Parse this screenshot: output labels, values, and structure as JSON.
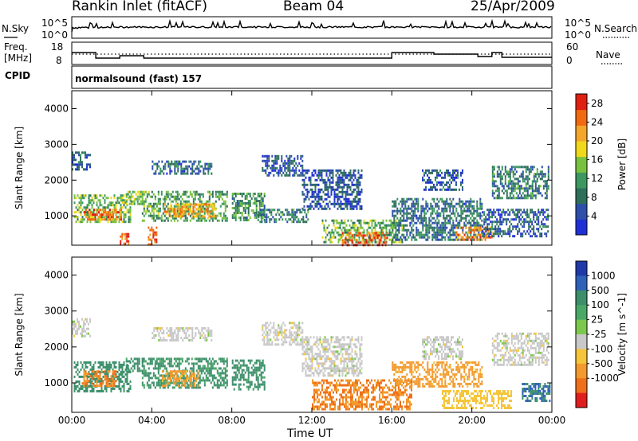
{
  "header": {
    "station": "Rankin Inlet (fitACF)",
    "beam": "Beam 04",
    "date": "25/Apr/2009"
  },
  "top_panel": {
    "nsky_label": "N.Sky",
    "nsky_ticks": [
      "10^5",
      "10^0"
    ],
    "nsearch_label": "N.Search",
    "nsearch_ticks": [
      "10^5",
      "10^0"
    ],
    "freq_label_1": "Freq.",
    "freq_label_2": "[MHz]",
    "freq_ticks": [
      "18",
      "8"
    ],
    "nave_label": "Nave",
    "nave_ticks": [
      "60",
      "0"
    ],
    "cpid_label": "CPID",
    "cpid_value": "normalsound (fast) 157"
  },
  "colors": {
    "power_scale": [
      "#1f2fd6",
      "#2d4faa",
      "#2f6f5a",
      "#3c9860",
      "#79c23f",
      "#f0d81a",
      "#f4a62a",
      "#f26a10",
      "#e02010"
    ],
    "velocity_scale": [
      "#1f3aa8",
      "#2f61b9",
      "#3c8f6a",
      "#4aa867",
      "#7cc84c",
      "#c8c8c8",
      "#f5c53a",
      "#f39a2c",
      "#f06f1a",
      "#e01e1e"
    ]
  },
  "chart_data": [
    {
      "type": "heatmap",
      "title": "",
      "xlabel": "Time UT",
      "ylabel": "Slant Range [km]",
      "x_ticks": [
        "00:00",
        "04:00",
        "08:00",
        "12:00",
        "16:00",
        "20:00",
        "00:00"
      ],
      "x_range_hours": [
        0,
        24
      ],
      "y_ticks": [
        "1000",
        "2000",
        "3000",
        "4000"
      ],
      "ylim": [
        180,
        4500
      ],
      "colorbar_label": "Power [dB]",
      "colorbar_ticks": [
        "4",
        "8",
        "12",
        "16",
        "20",
        "24",
        "28"
      ],
      "colorbar_range": [
        0,
        30
      ],
      "regions": [
        {
          "t": [
            0.1,
            2.9
          ],
          "r": [
            800,
            1600
          ],
          "value": 14
        },
        {
          "t": [
            0.6,
            2.5
          ],
          "r": [
            900,
            1200
          ],
          "value": 24
        },
        {
          "t": [
            0.0,
            0.9
          ],
          "r": [
            2300,
            2800
          ],
          "value": 6
        },
        {
          "t": [
            2.7,
            3.6
          ],
          "r": [
            1350,
            1700
          ],
          "value": 14
        },
        {
          "t": [
            3.5,
            7.8
          ],
          "r": [
            850,
            1700
          ],
          "value": 12
        },
        {
          "t": [
            4.6,
            7.2
          ],
          "r": [
            950,
            1350
          ],
          "value": 22
        },
        {
          "t": [
            3.8,
            4.2
          ],
          "r": [
            200,
            700
          ],
          "value": 26
        },
        {
          "t": [
            2.4,
            2.8
          ],
          "r": [
            200,
            520
          ],
          "value": 26
        },
        {
          "t": [
            4.0,
            7.0
          ],
          "r": [
            2200,
            2550
          ],
          "value": 7
        },
        {
          "t": [
            8.0,
            9.6
          ],
          "r": [
            850,
            1650
          ],
          "value": 11
        },
        {
          "t": [
            9.5,
            11.5
          ],
          "r": [
            2100,
            2700
          ],
          "value": 5
        },
        {
          "t": [
            9.3,
            11.8
          ],
          "r": [
            800,
            1200
          ],
          "value": 9
        },
        {
          "t": [
            11.5,
            14.5
          ],
          "r": [
            1200,
            2300
          ],
          "value": 5
        },
        {
          "t": [
            12.5,
            16.5
          ],
          "r": [
            250,
            900
          ],
          "value": 13
        },
        {
          "t": [
            13.5,
            15.8
          ],
          "r": [
            200,
            550
          ],
          "value": 26
        },
        {
          "t": [
            16.0,
            20.5
          ],
          "r": [
            300,
            1500
          ],
          "value": 8
        },
        {
          "t": [
            19.2,
            21.0
          ],
          "r": [
            350,
            700
          ],
          "value": 24
        },
        {
          "t": [
            17.5,
            19.5
          ],
          "r": [
            1700,
            2300
          ],
          "value": 6
        },
        {
          "t": [
            21.0,
            23.8
          ],
          "r": [
            1500,
            2400
          ],
          "value": 9
        },
        {
          "t": [
            20.5,
            23.8
          ],
          "r": [
            400,
            1200
          ],
          "value": 6
        }
      ]
    },
    {
      "type": "heatmap",
      "title": "",
      "xlabel": "Time UT",
      "ylabel": "Slant Range [km]",
      "x_ticks": [
        "00:00",
        "04:00",
        "08:00",
        "12:00",
        "16:00",
        "20:00",
        "00:00"
      ],
      "x_range_hours": [
        0,
        24
      ],
      "y_ticks": [
        "1000",
        "2000",
        "3000",
        "4000"
      ],
      "ylim": [
        180,
        4500
      ],
      "colorbar_label": "Velocity [m s^-1]",
      "colorbar_ticks": [
        "1000",
        "500",
        "100",
        "25",
        "-25",
        "-100",
        "-500",
        "-1000"
      ],
      "regions": [
        {
          "t": [
            0.1,
            2.9
          ],
          "r": [
            800,
            1600
          ],
          "value": 200
        },
        {
          "t": [
            0.5,
            2.2
          ],
          "r": [
            900,
            1350
          ],
          "value": -300
        },
        {
          "t": [
            0.0,
            0.9
          ],
          "r": [
            2300,
            2800
          ],
          "value": 0
        },
        {
          "t": [
            2.7,
            3.6
          ],
          "r": [
            1350,
            1700
          ],
          "value": 150
        },
        {
          "t": [
            3.5,
            7.8
          ],
          "r": [
            850,
            1700
          ],
          "value": 120
        },
        {
          "t": [
            4.5,
            6.3
          ],
          "r": [
            950,
            1350
          ],
          "value": -150
        },
        {
          "t": [
            4.0,
            7.0
          ],
          "r": [
            2200,
            2550
          ],
          "value": 0
        },
        {
          "t": [
            8.0,
            9.6
          ],
          "r": [
            850,
            1650
          ],
          "value": 150
        },
        {
          "t": [
            9.5,
            11.5
          ],
          "r": [
            2100,
            2700
          ],
          "value": 0
        },
        {
          "t": [
            11.5,
            14.5
          ],
          "r": [
            1200,
            2300
          ],
          "value": 0
        },
        {
          "t": [
            12.0,
            17.0
          ],
          "r": [
            250,
            1100
          ],
          "value": -300
        },
        {
          "t": [
            16.0,
            20.5
          ],
          "r": [
            900,
            1600
          ],
          "value": -150
        },
        {
          "t": [
            18.5,
            22.0
          ],
          "r": [
            300,
            800
          ],
          "value": -60
        },
        {
          "t": [
            17.5,
            19.5
          ],
          "r": [
            1700,
            2300
          ],
          "value": 0
        },
        {
          "t": [
            21.0,
            23.8
          ],
          "r": [
            1500,
            2400
          ],
          "value": 0
        },
        {
          "t": [
            22.5,
            23.9
          ],
          "r": [
            500,
            1000
          ],
          "value": 300
        }
      ]
    }
  ]
}
